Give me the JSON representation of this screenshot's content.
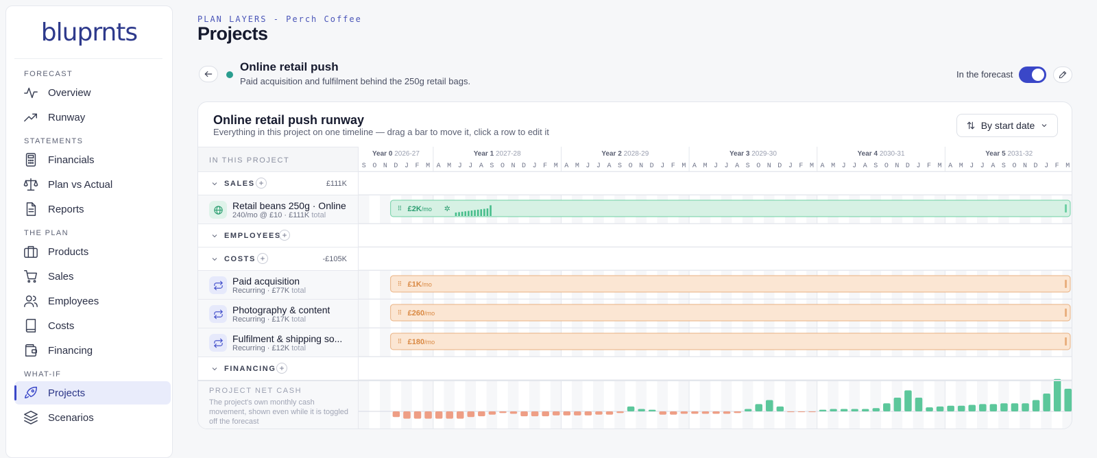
{
  "logo": "bluprnts",
  "sidebar": {
    "sections": [
      {
        "label": "FORECAST",
        "items": [
          {
            "label": "Overview",
            "icon": "activity-icon"
          },
          {
            "label": "Runway",
            "icon": "trend-icon"
          }
        ]
      },
      {
        "label": "STATEMENTS",
        "items": [
          {
            "label": "Financials",
            "icon": "calculator-icon"
          },
          {
            "label": "Plan vs Actual",
            "icon": "scale-icon"
          },
          {
            "label": "Reports",
            "icon": "document-icon"
          }
        ]
      },
      {
        "label": "THE PLAN",
        "items": [
          {
            "label": "Products",
            "icon": "briefcase-icon"
          },
          {
            "label": "Sales",
            "icon": "cart-icon"
          },
          {
            "label": "Employees",
            "icon": "users-icon"
          },
          {
            "label": "Costs",
            "icon": "book-icon"
          },
          {
            "label": "Financing",
            "icon": "wallet-icon"
          }
        ]
      },
      {
        "label": "WHAT-IF",
        "items": [
          {
            "label": "Projects",
            "icon": "rocket-icon",
            "active": true
          },
          {
            "label": "Scenarios",
            "icon": "layers-icon"
          }
        ]
      }
    ]
  },
  "header": {
    "eyebrow": "PLAN LAYERS - Perch Coffee",
    "title": "Projects"
  },
  "project": {
    "name": "Online retail push",
    "description": "Paid acquisition and fulfilment behind the 250g retail bags.",
    "forecast_label": "In the forecast",
    "in_forecast": true,
    "dot_color": "#2a9d8f"
  },
  "card": {
    "title": "Online retail push runway",
    "subtitle": "Everything in this project on one timeline — drag a bar to move it, click a row to edit it",
    "sort_label": "By start date"
  },
  "timeline": {
    "header_label": "IN THIS PROJECT",
    "years": [
      {
        "label": "Year 0",
        "range": "2026-27",
        "months": "SONDJFM"
      },
      {
        "label": "Year 1",
        "range": "2027-28",
        "months": "AMJJASONDJFM"
      },
      {
        "label": "Year 2",
        "range": "2028-29",
        "months": "AMJJASONDJFM"
      },
      {
        "label": "Year 3",
        "range": "2029-30",
        "months": "AMJJASONDJFM"
      },
      {
        "label": "Year 4",
        "range": "2030-31",
        "months": "AMJJASONDJFM"
      },
      {
        "label": "Year 5",
        "range": "2031-32",
        "months": "AMJJASONDJFM"
      }
    ]
  },
  "groups": {
    "sales": {
      "label": "SALES",
      "amount": "£111K"
    },
    "employees": {
      "label": "EMPLOYEES"
    },
    "costs": {
      "label": "COSTS",
      "amount": "-£105K"
    },
    "financing": {
      "label": "FINANCING"
    }
  },
  "items": {
    "retail": {
      "name": "Retail beans 250g · Online",
      "sub": "240/mo @ £10 · £111K",
      "sub_muted": "total",
      "bar_value": "£2K",
      "bar_unit": "/mo",
      "start_month": 3,
      "color": "#2bb07f"
    },
    "paid": {
      "name": "Paid acquisition",
      "sub": "Recurring · £77K",
      "sub_muted": "total",
      "bar_value": "£1K",
      "bar_unit": "/mo",
      "start_month": 3,
      "color": "#e59a5e"
    },
    "photo": {
      "name": "Photography & content",
      "sub": "Recurring · £17K",
      "sub_muted": "total",
      "bar_value": "£260",
      "bar_unit": "/mo",
      "start_month": 3,
      "color": "#e59a5e"
    },
    "fulfil": {
      "name": "Fulfilment & shipping so...",
      "sub": "Recurring · £12K",
      "sub_muted": "total",
      "bar_value": "£180",
      "bar_unit": "/mo",
      "start_month": 3,
      "color": "#e59a5e"
    }
  },
  "net_cash": {
    "label": "PROJECT NET CASH",
    "description": "The project's own monthly cash movement, shown even while it is toggled off the forecast",
    "values": [
      0,
      0,
      0,
      -7,
      -9,
      -9,
      -9,
      -9,
      -9,
      -9,
      -7,
      -6,
      -4,
      -2,
      -3,
      -6,
      -6,
      -6,
      -5,
      -5,
      -5,
      -5,
      -4,
      -4,
      -2,
      6,
      3,
      2,
      -4,
      -4,
      -3,
      -3,
      -3,
      -3,
      -3,
      -2,
      3,
      9,
      14,
      6,
      -1,
      -1,
      -1,
      2,
      3,
      3,
      3,
      3,
      4,
      10,
      17,
      26,
      17,
      5,
      6,
      7,
      7,
      8,
      9,
      9,
      10,
      10,
      10,
      14,
      22,
      40,
      28,
      12,
      12,
      14
    ]
  }
}
